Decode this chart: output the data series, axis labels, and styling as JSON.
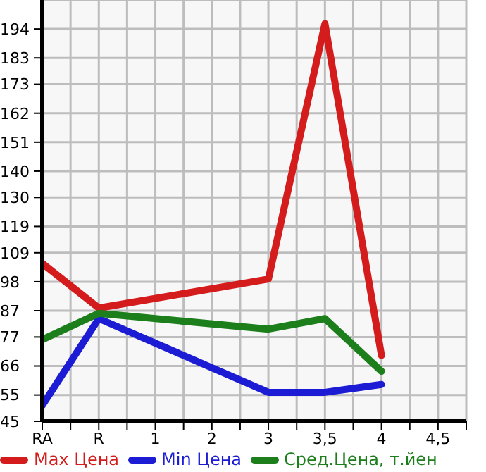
{
  "chart_data": {
    "type": "line",
    "categories": [
      "RA",
      "R",
      "1",
      "2",
      "3",
      "3,5",
      "4",
      "4,5"
    ],
    "series": [
      {
        "name": "Max Цена",
        "color": "#d41c1c",
        "values": [
          105,
          88,
          null,
          null,
          99,
          196,
          70,
          null
        ]
      },
      {
        "name": "Min Цена",
        "color": "#1c1cd4",
        "values": [
          51,
          84,
          null,
          null,
          56,
          56,
          59,
          null
        ]
      },
      {
        "name": "Сред.Цена, т.йен",
        "color": "#1c7f1c",
        "values": [
          76,
          86,
          null,
          null,
          80,
          84,
          64,
          null
        ]
      }
    ],
    "ylim": [
      45,
      205
    ],
    "yticks": [
      45,
      55,
      66,
      77,
      87,
      98,
      109,
      119,
      130,
      140,
      151,
      162,
      173,
      183,
      194
    ],
    "grid": true,
    "legend": "bottom",
    "marker": "none",
    "line_style": "solid"
  }
}
